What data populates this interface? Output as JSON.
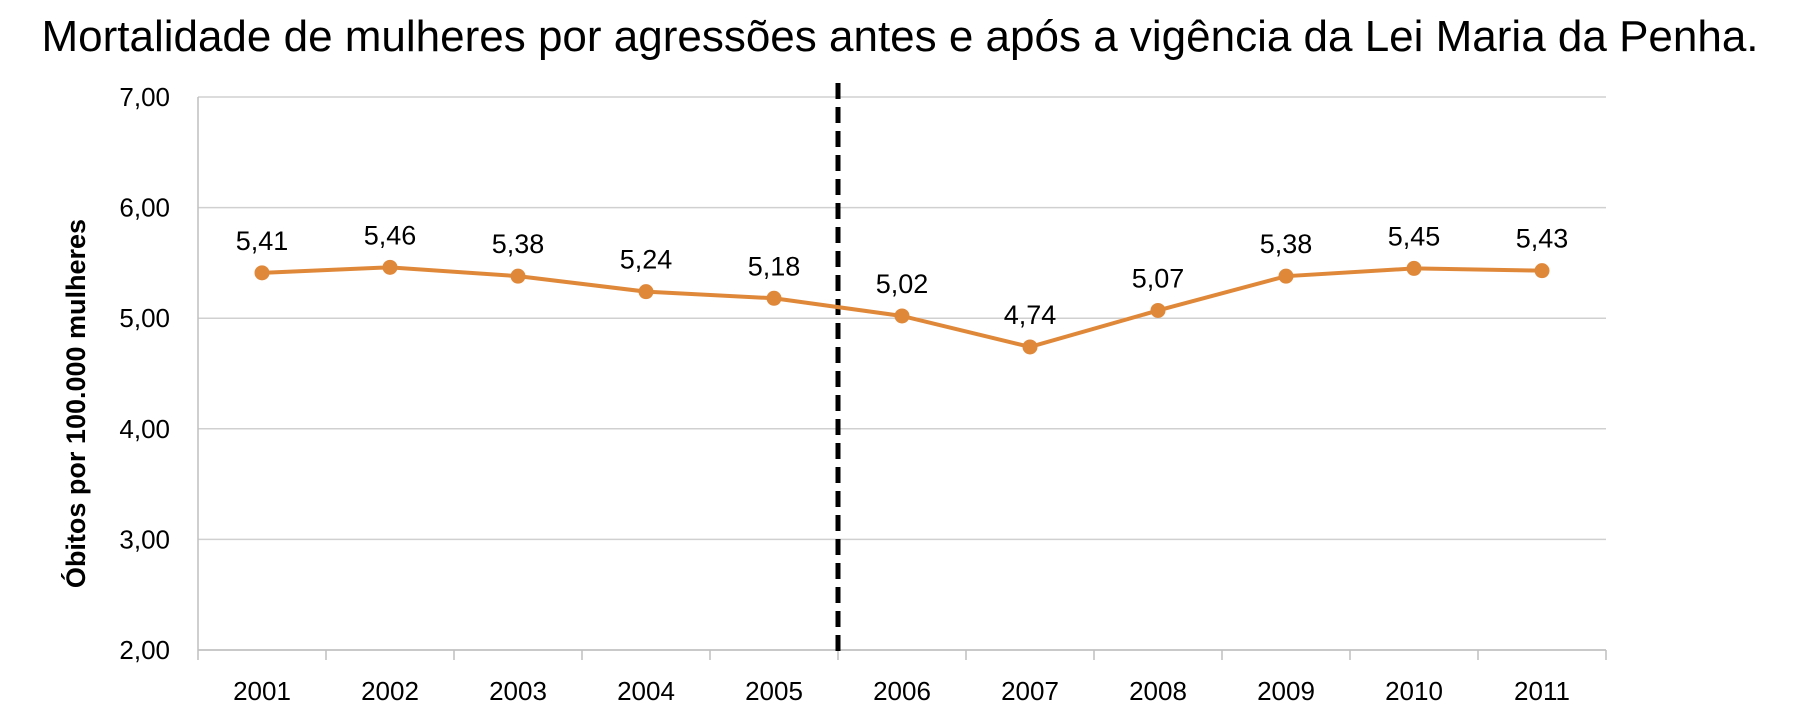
{
  "chart_data": {
    "type": "line",
    "title": "Mortalidade de mulheres por agressões antes e após a vigência da Lei Maria da Penha.",
    "xlabel": "",
    "ylabel": "Óbitos por 100.000 mulheres",
    "categories": [
      "2001",
      "2002",
      "2003",
      "2004",
      "2005",
      "2006",
      "2007",
      "2008",
      "2009",
      "2010",
      "2011"
    ],
    "values": [
      5.41,
      5.46,
      5.38,
      5.24,
      5.18,
      5.02,
      4.74,
      5.07,
      5.38,
      5.45,
      5.43
    ],
    "value_labels": [
      "5,41",
      "5,46",
      "5,38",
      "5,24",
      "5,18",
      "5,02",
      "4,74",
      "5,07",
      "5,38",
      "5,45",
      "5,43"
    ],
    "ylim": [
      2,
      7
    ],
    "yticks": [
      2,
      3,
      4,
      5,
      6,
      7
    ],
    "ytick_labels": [
      "2,00",
      "3,00",
      "4,00",
      "5,00",
      "6,00",
      "7,00"
    ],
    "grid": true,
    "legend": "none",
    "vertical_marker": {
      "between": [
        "2005",
        "2006"
      ],
      "style": "dashed"
    },
    "colors": {
      "line": "#E0883A",
      "marker_line": "#000000",
      "grid": "#d0d0d0",
      "axis": "#bfbfbf"
    }
  }
}
